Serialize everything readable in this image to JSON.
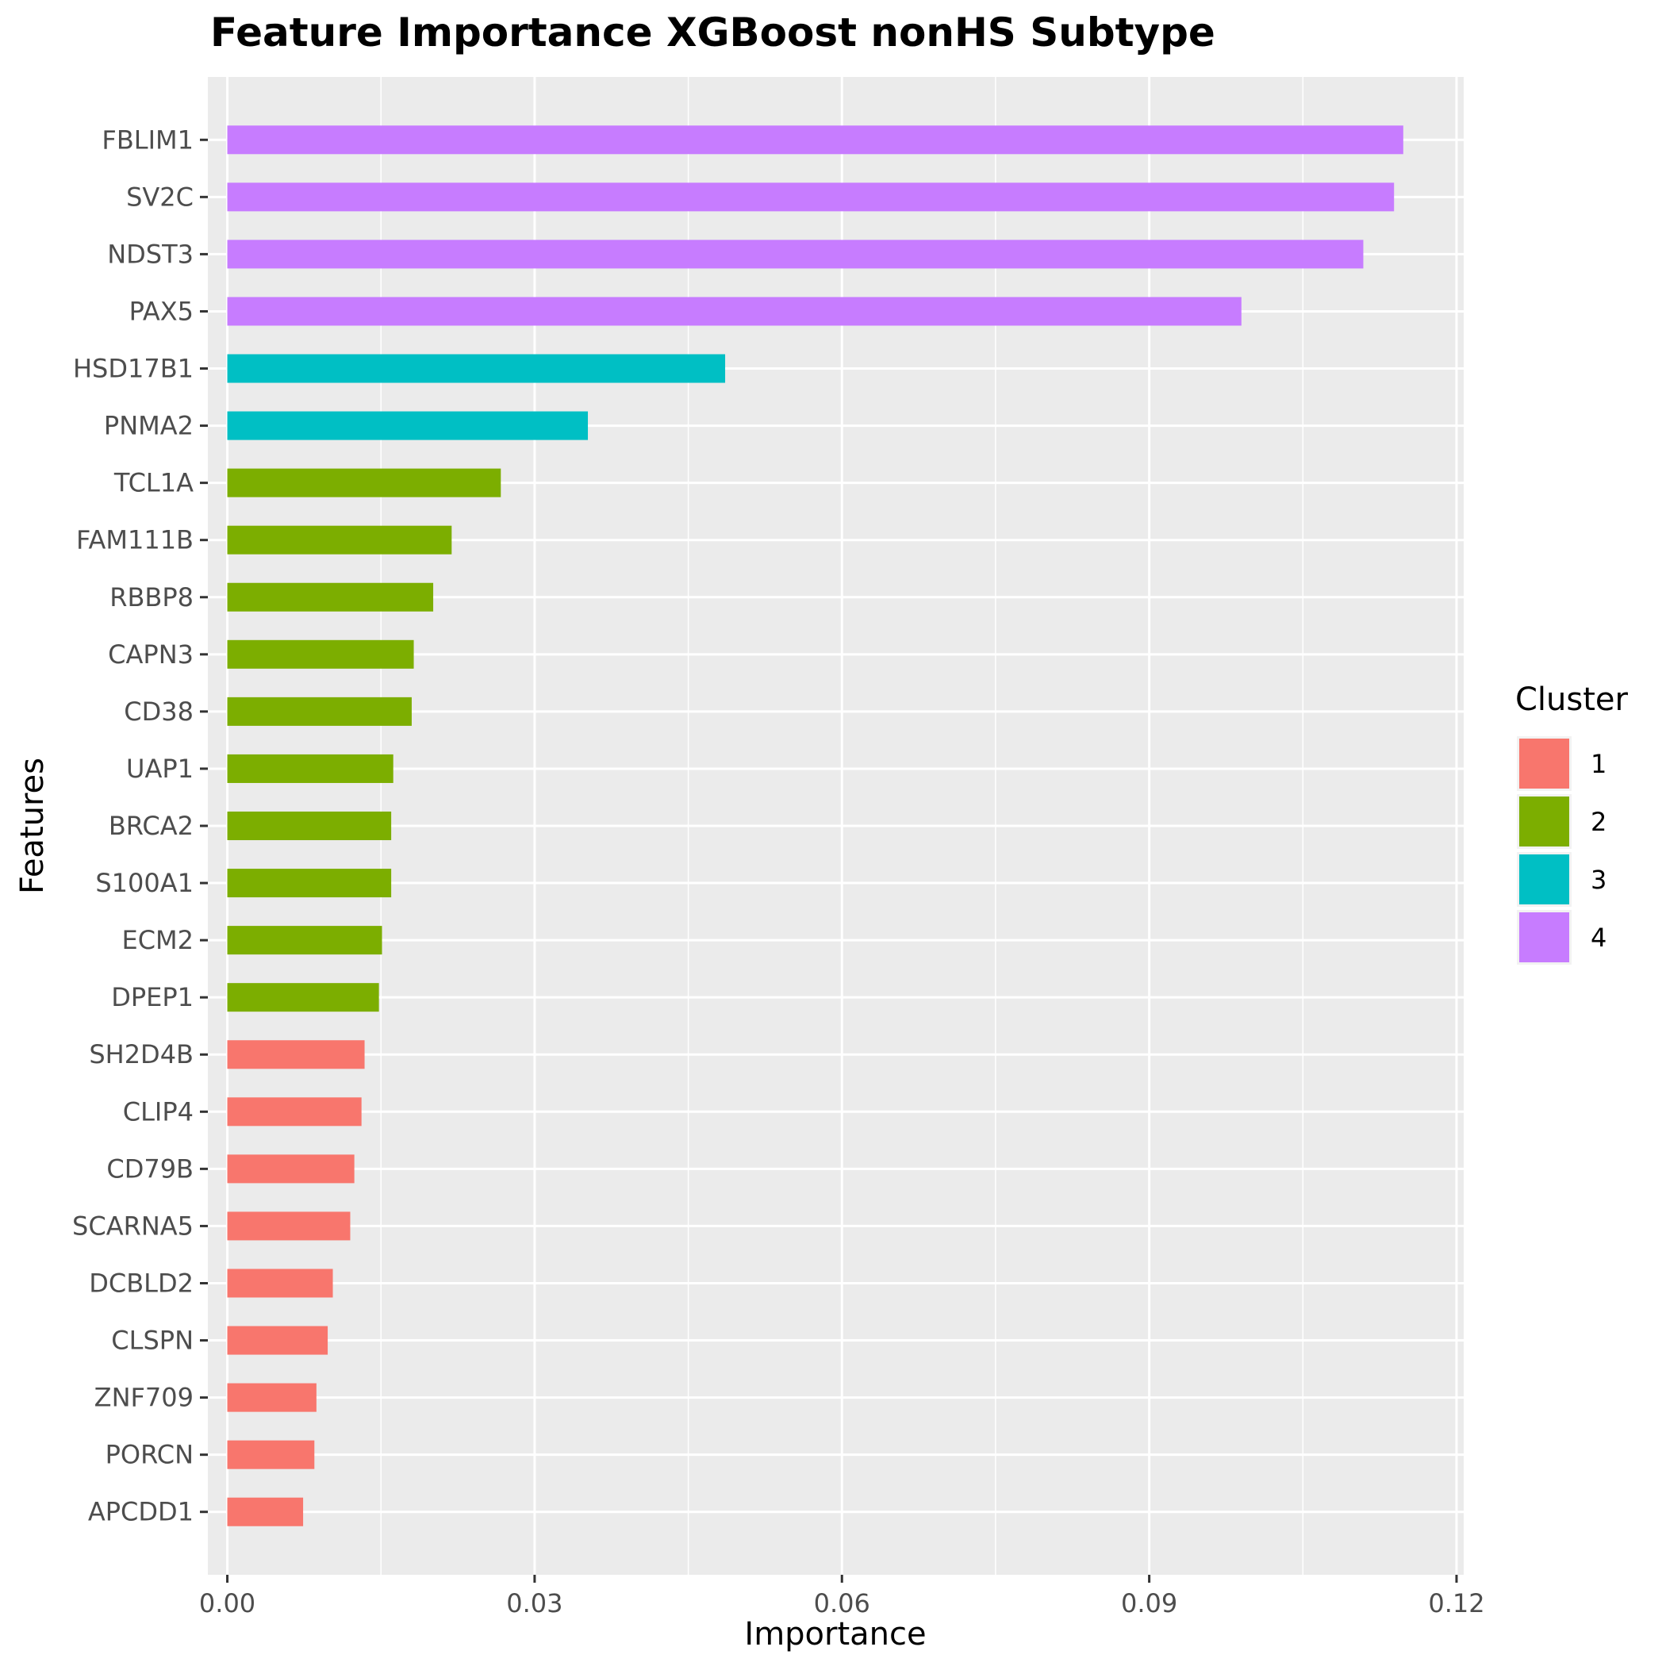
{
  "chart_data": {
    "type": "bar",
    "orientation": "horizontal",
    "title": "Feature Importance XGBoost nonHS Subtype",
    "xlabel": "Importance",
    "ylabel": "Features",
    "xlim": [
      -0.0019,
      0.1207
    ],
    "xticks": [
      "0.00",
      "0.03",
      "0.06",
      "0.09",
      "0.12"
    ],
    "xtick_values": [
      0,
      0.03,
      0.06,
      0.09,
      0.12
    ],
    "grid": true,
    "legend": {
      "title": "Cluster",
      "position": "right",
      "entries": [
        {
          "label": "1",
          "color": "#F8766D"
        },
        {
          "label": "2",
          "color": "#7CAE00"
        },
        {
          "label": "3",
          "color": "#00BFC4"
        },
        {
          "label": "4",
          "color": "#C77CFF"
        }
      ]
    },
    "bars": [
      {
        "feature": "FBLIM1",
        "value": 0.1148,
        "cluster": "4"
      },
      {
        "feature": "SV2C",
        "value": 0.1139,
        "cluster": "4"
      },
      {
        "feature": "NDST3",
        "value": 0.1109,
        "cluster": "4"
      },
      {
        "feature": "PAX5",
        "value": 0.099,
        "cluster": "4"
      },
      {
        "feature": "HSD17B1",
        "value": 0.0486,
        "cluster": "3"
      },
      {
        "feature": "PNMA2",
        "value": 0.0352,
        "cluster": "3"
      },
      {
        "feature": "TCL1A",
        "value": 0.0267,
        "cluster": "2"
      },
      {
        "feature": "FAM111B",
        "value": 0.0219,
        "cluster": "2"
      },
      {
        "feature": "RBBP8",
        "value": 0.0201,
        "cluster": "2"
      },
      {
        "feature": "CAPN3",
        "value": 0.0182,
        "cluster": "2"
      },
      {
        "feature": "CD38",
        "value": 0.018,
        "cluster": "2"
      },
      {
        "feature": "UAP1",
        "value": 0.0162,
        "cluster": "2"
      },
      {
        "feature": "BRCA2",
        "value": 0.016,
        "cluster": "2"
      },
      {
        "feature": "S100A1",
        "value": 0.016,
        "cluster": "2"
      },
      {
        "feature": "ECM2",
        "value": 0.0151,
        "cluster": "2"
      },
      {
        "feature": "DPEP1",
        "value": 0.0148,
        "cluster": "2"
      },
      {
        "feature": "SH2D4B",
        "value": 0.0134,
        "cluster": "1"
      },
      {
        "feature": "CLIP4",
        "value": 0.0131,
        "cluster": "1"
      },
      {
        "feature": "CD79B",
        "value": 0.0124,
        "cluster": "1"
      },
      {
        "feature": "SCARNA5",
        "value": 0.012,
        "cluster": "1"
      },
      {
        "feature": "DCBLD2",
        "value": 0.0103,
        "cluster": "1"
      },
      {
        "feature": "CLSPN",
        "value": 0.0098,
        "cluster": "1"
      },
      {
        "feature": "ZNF709",
        "value": 0.0087,
        "cluster": "1"
      },
      {
        "feature": "PORCN",
        "value": 0.0085,
        "cluster": "1"
      },
      {
        "feature": "APCDD1",
        "value": 0.0074,
        "cluster": "1"
      }
    ]
  }
}
